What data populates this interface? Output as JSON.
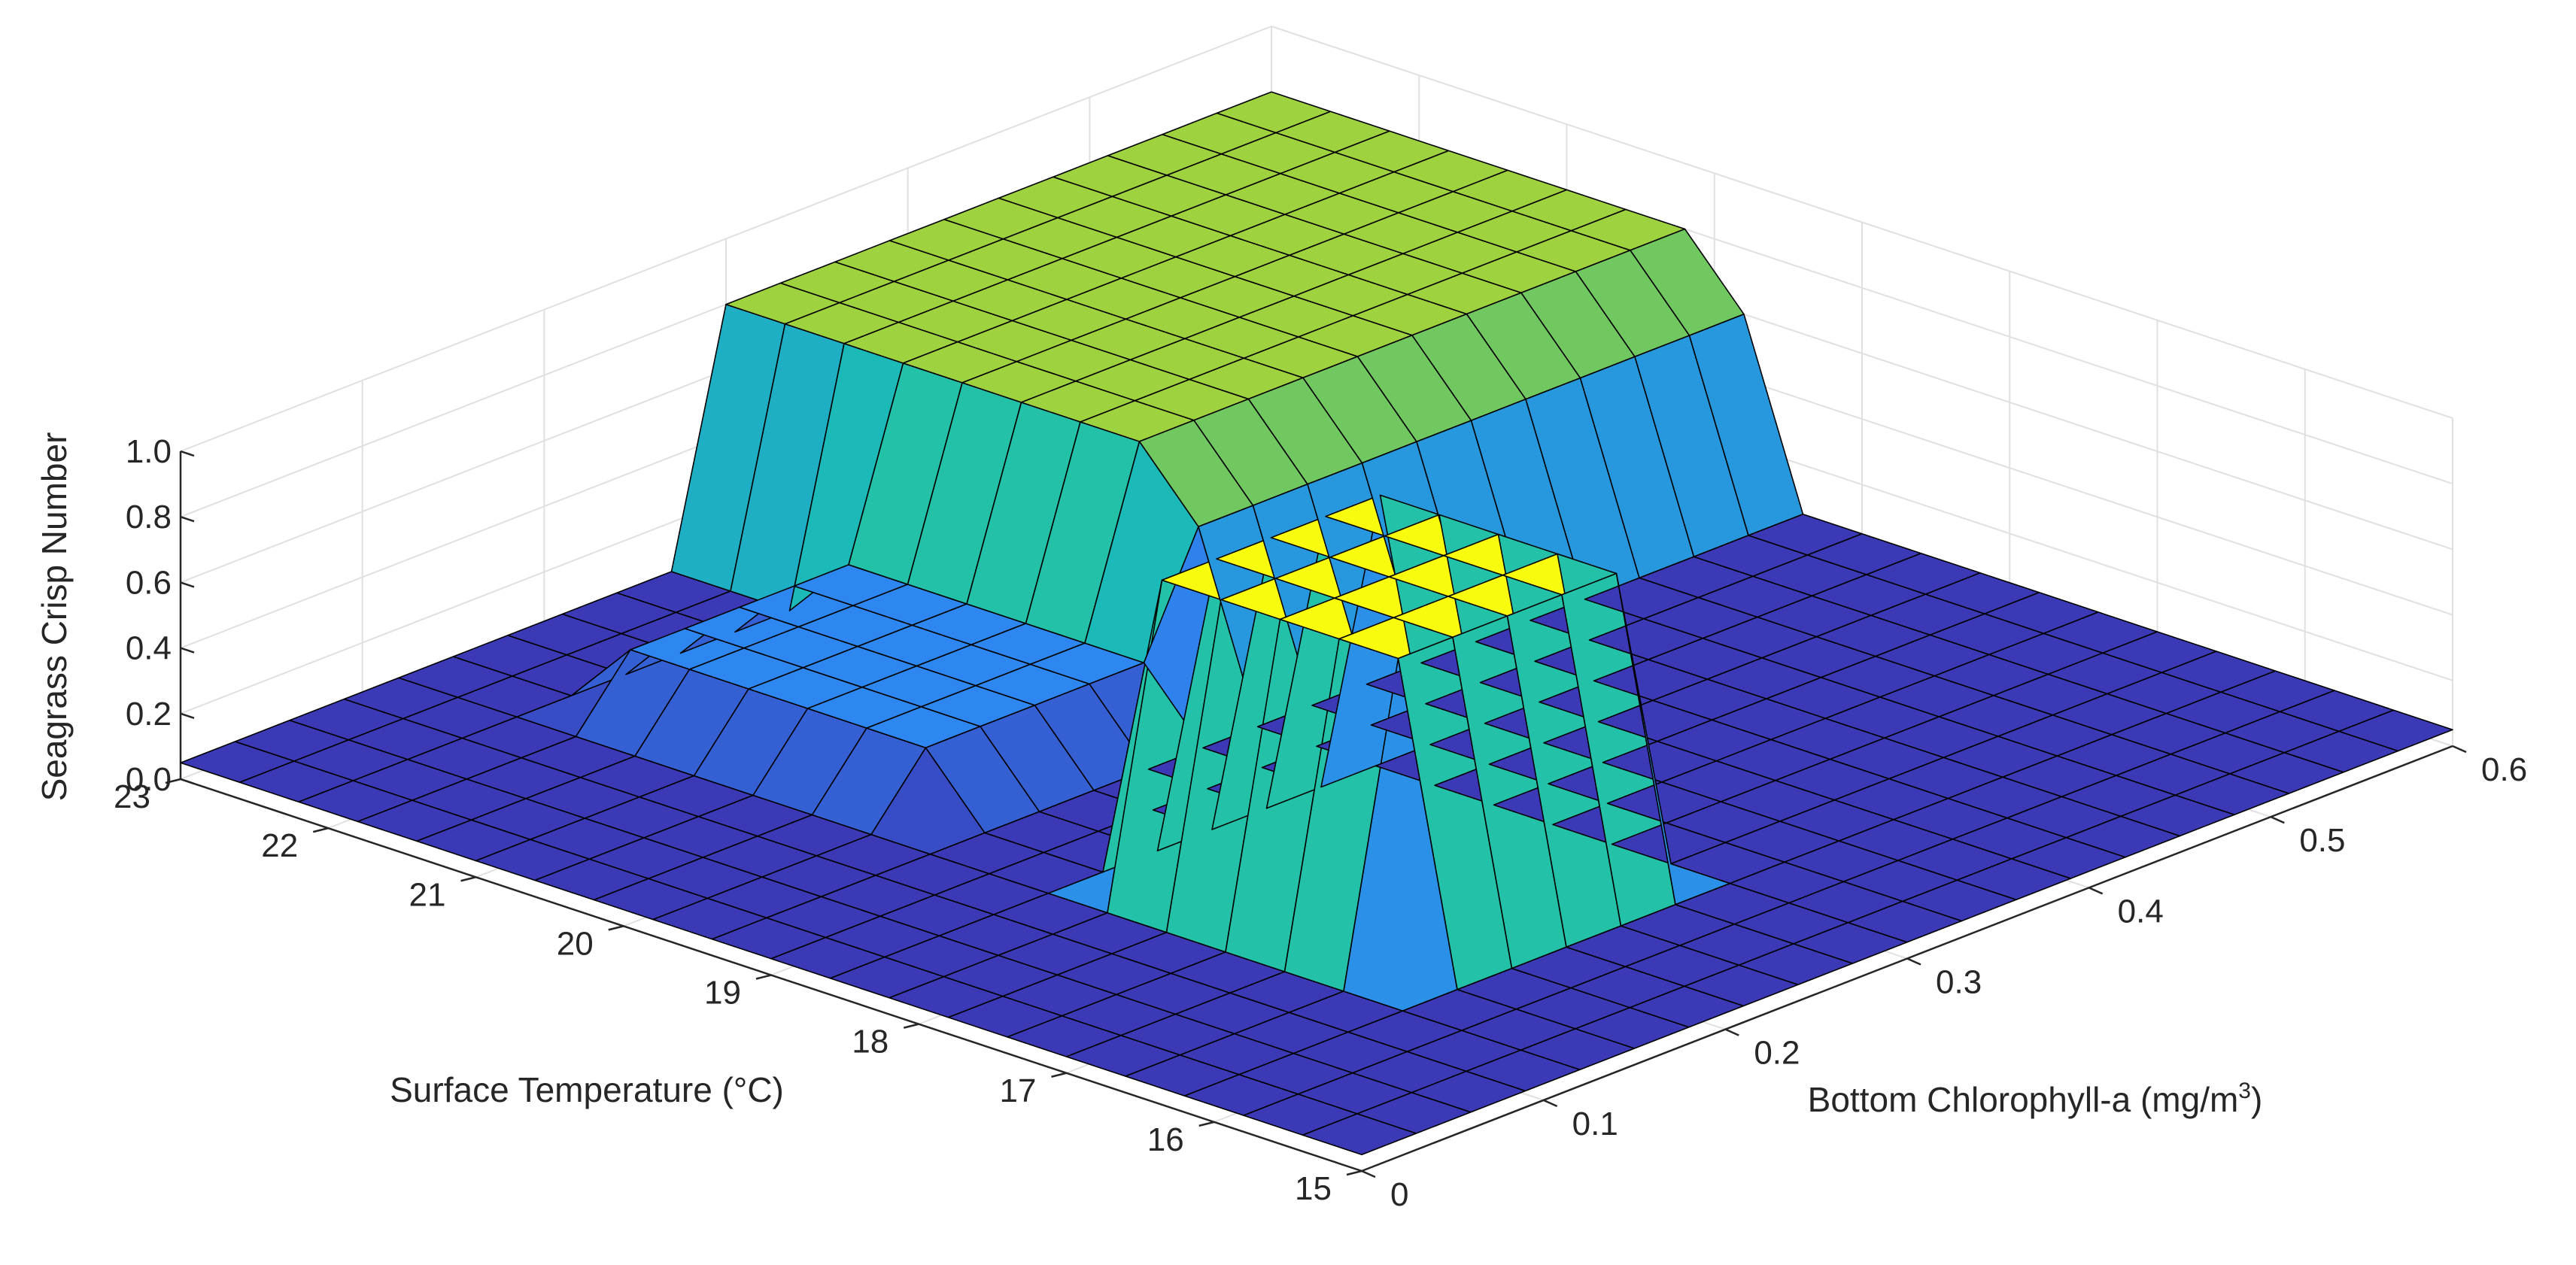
{
  "chart_data": {
    "type": "surface",
    "xlabel": "Surface Temperature (°C)",
    "ylabel_main": "Bottom Chlorophyll-a (mg/m",
    "ylabel_sup": "3",
    "ylabel_close": ")",
    "zlabel": "Seagrass Crisp Number",
    "xlim": [
      15,
      23
    ],
    "ylim": [
      0,
      0.6
    ],
    "zlim": [
      0,
      1
    ],
    "x_ticks": [
      "15",
      "16",
      "17",
      "18",
      "19",
      "20",
      "21",
      "22",
      "23"
    ],
    "y_ticks": [
      "0",
      "0.1",
      "0.2",
      "0.3",
      "0.4",
      "0.5",
      "0.6"
    ],
    "z_ticks": [
      "0.0",
      "0.2",
      "0.4",
      "0.6",
      "0.8",
      "1.0"
    ],
    "grid": true,
    "colormap": "parula",
    "colors": {
      "low": "#3e26a8",
      "mid_low": "#2e87f0",
      "mid": "#19c0b3",
      "mid_high": "#87c94b",
      "high": "#f9fb0e",
      "edge": "#000000",
      "grid": "#e0e0e0",
      "axis": "#262626"
    },
    "x": [
      15.0,
      15.4,
      15.8,
      16.2,
      16.6,
      17.0,
      17.4,
      17.8,
      18.2,
      18.6,
      19.0,
      19.4,
      19.8,
      20.2,
      20.6,
      21.0,
      21.4,
      21.8,
      22.2,
      22.6,
      23.0
    ],
    "y": [
      0.0,
      0.03,
      0.06,
      0.09,
      0.12,
      0.15,
      0.18,
      0.21,
      0.24,
      0.27,
      0.3,
      0.33,
      0.36,
      0.39,
      0.42,
      0.45,
      0.48,
      0.51,
      0.54,
      0.57,
      0.6
    ],
    "z": [
      [
        0.05,
        0.05,
        0.05,
        0.05,
        0.05,
        0.05,
        0.05,
        0.05,
        0.05,
        0.05,
        0.05,
        0.05,
        0.05,
        0.05,
        0.05,
        0.05,
        0.05,
        0.05,
        0.05,
        0.05,
        0.05
      ],
      [
        0.05,
        0.05,
        0.05,
        0.05,
        0.05,
        0.05,
        0.05,
        0.05,
        0.05,
        0.05,
        0.05,
        0.05,
        0.05,
        0.05,
        0.05,
        0.05,
        0.05,
        0.05,
        0.05,
        0.05,
        0.05
      ],
      [
        0.05,
        0.05,
        0.05,
        0.05,
        0.05,
        0.05,
        0.05,
        0.05,
        0.05,
        0.05,
        0.05,
        0.05,
        0.05,
        0.05,
        0.05,
        0.05,
        0.05,
        0.05,
        0.05,
        0.05,
        0.05
      ],
      [
        0.05,
        0.05,
        0.05,
        0.05,
        0.05,
        0.05,
        0.05,
        0.05,
        0.05,
        0.05,
        0.05,
        0.05,
        0.05,
        0.05,
        0.05,
        0.05,
        0.05,
        0.05,
        0.05,
        0.05,
        0.05
      ],
      [
        0.05,
        0.05,
        0.05,
        0.05,
        0.05,
        0.05,
        0.05,
        0.05,
        0.05,
        0.05,
        0.05,
        0.05,
        0.05,
        0.05,
        0.05,
        0.05,
        0.05,
        0.05,
        0.05,
        0.05,
        0.05
      ],
      [
        0.05,
        0.05,
        0.05,
        0.05,
        1.0,
        1.0,
        1.0,
        1.0,
        1.0,
        0.05,
        0.05,
        0.05,
        0.25,
        0.25,
        0.25,
        0.25,
        0.25,
        0.25,
        0.05,
        0.05,
        0.05
      ],
      [
        0.05,
        0.05,
        0.05,
        0.05,
        1.0,
        1.0,
        1.0,
        1.0,
        1.0,
        0.05,
        0.05,
        0.05,
        0.25,
        0.25,
        0.25,
        0.25,
        0.25,
        0.25,
        0.05,
        0.05,
        0.05
      ],
      [
        0.05,
        0.05,
        0.05,
        0.05,
        1.0,
        1.0,
        1.0,
        1.0,
        1.0,
        0.05,
        0.05,
        0.05,
        0.25,
        0.25,
        0.25,
        0.25,
        0.25,
        0.25,
        0.05,
        0.05,
        0.05
      ],
      [
        0.05,
        0.05,
        0.05,
        0.05,
        1.0,
        1.0,
        1.0,
        1.0,
        1.0,
        0.05,
        0.05,
        0.05,
        0.25,
        0.25,
        0.25,
        0.25,
        0.25,
        0.25,
        0.05,
        0.05,
        0.05
      ],
      [
        0.05,
        0.05,
        0.05,
        0.05,
        1.0,
        1.0,
        1.0,
        1.0,
        1.0,
        0.05,
        0.05,
        0.05,
        0.25,
        0.25,
        0.25,
        0.25,
        0.25,
        0.25,
        0.05,
        0.05,
        0.05
      ],
      [
        0.05,
        0.05,
        0.05,
        0.05,
        0.05,
        0.05,
        0.05,
        0.05,
        0.05,
        0.05,
        0.05,
        0.05,
        0.6,
        0.8,
        0.8,
        0.8,
        0.8,
        0.8,
        0.8,
        0.8,
        0.8
      ],
      [
        0.05,
        0.05,
        0.05,
        0.05,
        0.05,
        0.05,
        0.05,
        0.05,
        0.05,
        0.05,
        0.05,
        0.05,
        0.6,
        0.8,
        0.8,
        0.8,
        0.8,
        0.8,
        0.8,
        0.8,
        0.8
      ],
      [
        0.05,
        0.05,
        0.05,
        0.05,
        0.05,
        0.05,
        0.05,
        0.05,
        0.05,
        0.05,
        0.05,
        0.05,
        0.6,
        0.8,
        0.8,
        0.8,
        0.8,
        0.8,
        0.8,
        0.8,
        0.8
      ],
      [
        0.05,
        0.05,
        0.05,
        0.05,
        0.05,
        0.05,
        0.05,
        0.05,
        0.05,
        0.05,
        0.05,
        0.05,
        0.6,
        0.8,
        0.8,
        0.8,
        0.8,
        0.8,
        0.8,
        0.8,
        0.8
      ],
      [
        0.05,
        0.05,
        0.05,
        0.05,
        0.05,
        0.05,
        0.05,
        0.05,
        0.05,
        0.05,
        0.05,
        0.05,
        0.6,
        0.8,
        0.8,
        0.8,
        0.8,
        0.8,
        0.8,
        0.8,
        0.8
      ],
      [
        0.05,
        0.05,
        0.05,
        0.05,
        0.05,
        0.05,
        0.05,
        0.05,
        0.05,
        0.05,
        0.05,
        0.05,
        0.6,
        0.8,
        0.8,
        0.8,
        0.8,
        0.8,
        0.8,
        0.8,
        0.8
      ],
      [
        0.05,
        0.05,
        0.05,
        0.05,
        0.05,
        0.05,
        0.05,
        0.05,
        0.05,
        0.05,
        0.05,
        0.05,
        0.6,
        0.8,
        0.8,
        0.8,
        0.8,
        0.8,
        0.8,
        0.8,
        0.8
      ],
      [
        0.05,
        0.05,
        0.05,
        0.05,
        0.05,
        0.05,
        0.05,
        0.05,
        0.05,
        0.05,
        0.05,
        0.05,
        0.6,
        0.8,
        0.8,
        0.8,
        0.8,
        0.8,
        0.8,
        0.8,
        0.8
      ],
      [
        0.05,
        0.05,
        0.05,
        0.05,
        0.05,
        0.05,
        0.05,
        0.05,
        0.05,
        0.05,
        0.05,
        0.05,
        0.6,
        0.8,
        0.8,
        0.8,
        0.8,
        0.8,
        0.8,
        0.8,
        0.8
      ],
      [
        0.05,
        0.05,
        0.05,
        0.05,
        0.05,
        0.05,
        0.05,
        0.05,
        0.05,
        0.05,
        0.05,
        0.05,
        0.6,
        0.8,
        0.8,
        0.8,
        0.8,
        0.8,
        0.8,
        0.8,
        0.8
      ],
      [
        0.05,
        0.05,
        0.05,
        0.05,
        0.05,
        0.05,
        0.05,
        0.05,
        0.05,
        0.05,
        0.05,
        0.05,
        0.6,
        0.8,
        0.8,
        0.8,
        0.8,
        0.8,
        0.8,
        0.8,
        0.8
      ]
    ]
  }
}
